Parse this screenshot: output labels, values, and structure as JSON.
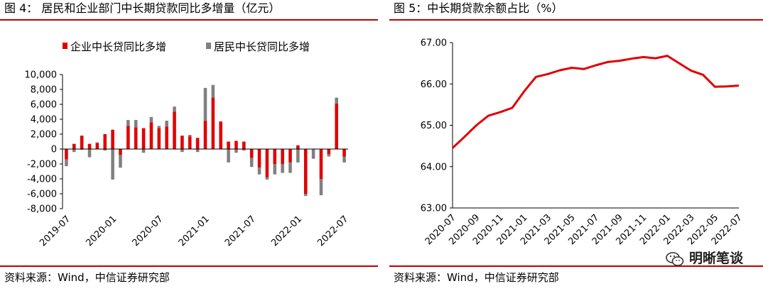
{
  "left": {
    "title": "图 4：  居民和企业部门中长期贷款同比多增量（亿元）",
    "source": "资料来源：Wind，中信证券研究部"
  },
  "right": {
    "title": "图 5：中长期贷款余额占比（%）",
    "source": "资料来源：Wind，中信证券研究部"
  },
  "watermark": {
    "text": "明晰笔谈",
    "icon": "wechat-icon"
  },
  "colors": {
    "red": "#e00000",
    "gray": "#808080",
    "rule": "#c00000",
    "line": "#e00000"
  },
  "chart_data": [
    {
      "type": "bar",
      "title": "",
      "xlabel": "",
      "ylabel": "",
      "ylim": [
        -8000,
        10000
      ],
      "yticks": [
        -8000,
        -6000,
        -4000,
        -2000,
        0,
        2000,
        4000,
        6000,
        8000,
        10000
      ],
      "ytick_labels": [
        "-8,000",
        "-6,000",
        "-4,000",
        "-2,000",
        "0",
        "2,000",
        "4,000",
        "6,000",
        "8,000",
        "10,000"
      ],
      "xtick_labels": [
        "2019-07",
        "2020-01",
        "2020-07",
        "2021-01",
        "2021-07",
        "2022-01",
        "2022-07"
      ],
      "xtick_indices": [
        0,
        6,
        12,
        18,
        24,
        30,
        36
      ],
      "legend_position": "top",
      "categories": [
        "2019-07",
        "2019-08",
        "2019-09",
        "2019-10",
        "2019-11",
        "2019-12",
        "2020-01",
        "2020-02",
        "2020-03",
        "2020-04",
        "2020-05",
        "2020-06",
        "2020-07",
        "2020-08",
        "2020-09",
        "2020-10",
        "2020-11",
        "2020-12",
        "2021-01",
        "2021-02",
        "2021-03",
        "2021-04",
        "2021-05",
        "2021-06",
        "2021-07",
        "2021-08",
        "2021-09",
        "2021-10",
        "2021-11",
        "2021-12",
        "2022-01",
        "2022-02",
        "2022-03",
        "2022-04",
        "2022-05",
        "2022-06",
        "2022-07"
      ],
      "series": [
        {
          "name": "企业中长贷同比多增",
          "color": "#e00000",
          "values": [
            -1400,
            700,
            1800,
            700,
            800,
            2000,
            2600,
            -800,
            3100,
            2900,
            2800,
            3600,
            2800,
            3000,
            5000,
            1800,
            1700,
            1500,
            3800,
            6900,
            3700,
            1000,
            1100,
            1000,
            -1200,
            -2500,
            -3800,
            -2000,
            -2000,
            -1800,
            500,
            -6000,
            0,
            -4000,
            -700,
            6100,
            -1000
          ]
        },
        {
          "name": "居民中长贷同比多增",
          "color": "#808080",
          "values": [
            -900,
            -400,
            -100,
            -1100,
            100,
            -200,
            -4100,
            -1700,
            800,
            1000,
            -500,
            700,
            300,
            800,
            700,
            -400,
            200,
            -400,
            4400,
            1700,
            0,
            -1800,
            -500,
            -200,
            -1200,
            -900,
            -300,
            -1400,
            -1200,
            -1400,
            -1800,
            -300,
            -1300,
            -2200,
            -300,
            800,
            -800
          ]
        }
      ]
    },
    {
      "type": "line",
      "title": "",
      "xlabel": "",
      "ylabel": "",
      "ylim": [
        63.0,
        67.0
      ],
      "yticks": [
        63.0,
        64.0,
        65.0,
        66.0,
        67.0
      ],
      "ytick_labels": [
        "63.00",
        "64.00",
        "65.00",
        "66.00",
        "67.00"
      ],
      "xtick_labels": [
        "2020-07",
        "2020-09",
        "2020-11",
        "2021-01",
        "2021-03",
        "2021-05",
        "2021-07",
        "2021-09",
        "2021-11",
        "2022-01",
        "2022-03",
        "2022-05",
        "2022-07"
      ],
      "x": [
        "2020-07",
        "2020-08",
        "2020-09",
        "2020-10",
        "2020-11",
        "2020-12",
        "2021-01",
        "2021-02",
        "2021-03",
        "2021-04",
        "2021-05",
        "2021-06",
        "2021-07",
        "2021-08",
        "2021-09",
        "2021-10",
        "2021-11",
        "2021-12",
        "2022-01",
        "2022-02",
        "2022-03",
        "2022-04",
        "2022-05",
        "2022-06",
        "2022-07"
      ],
      "series": [
        {
          "name": "",
          "color": "#e00000",
          "values": [
            64.45,
            64.72,
            65.0,
            65.23,
            65.32,
            65.42,
            65.82,
            66.17,
            66.24,
            66.33,
            66.39,
            66.36,
            66.45,
            66.53,
            66.56,
            66.61,
            66.65,
            66.62,
            66.68,
            66.5,
            66.32,
            66.22,
            65.93,
            65.94,
            65.96
          ]
        }
      ]
    }
  ]
}
